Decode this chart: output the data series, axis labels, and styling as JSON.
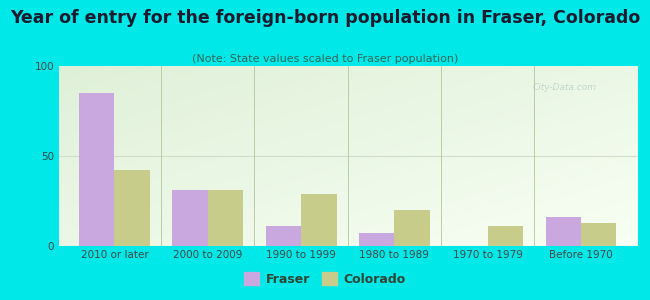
{
  "title": "Year of entry for the foreign-born population in Fraser, Colorado",
  "subtitle": "(Note: State values scaled to Fraser population)",
  "categories": [
    "2010 or later",
    "2000 to 2009",
    "1990 to 1999",
    "1980 to 1989",
    "1970 to 1979",
    "Before 1970"
  ],
  "fraser_values": [
    85,
    31,
    11,
    7,
    0,
    16
  ],
  "colorado_values": [
    42,
    31,
    29,
    20,
    11,
    13
  ],
  "fraser_color": "#c9a8e0",
  "colorado_color": "#c8cc8a",
  "ylim": [
    0,
    100
  ],
  "yticks": [
    0,
    50,
    100
  ],
  "bg_outer": "#00e8e8",
  "bg_chart_topleft": "#e8f5e0",
  "bg_chart_bottomright": "#f5fff8",
  "grid_color": "#e0e8d8",
  "bar_width": 0.38,
  "figsize": [
    6.5,
    3.0
  ],
  "dpi": 100,
  "title_fontsize": 12.5,
  "subtitle_fontsize": 8.0,
  "tick_fontsize": 7.5,
  "legend_fontsize": 9,
  "watermark_color": "#b0c8c0",
  "watermark_alpha": 0.7
}
